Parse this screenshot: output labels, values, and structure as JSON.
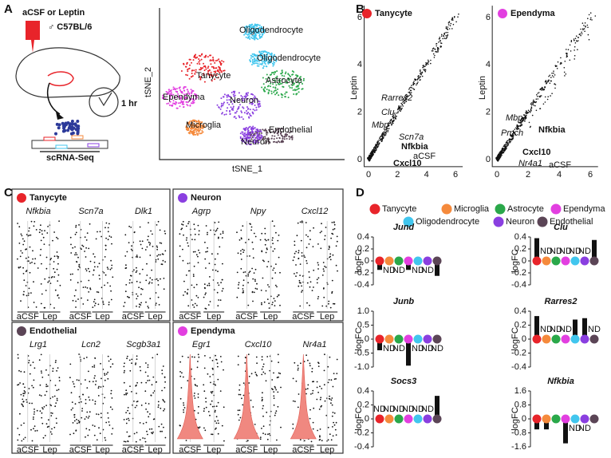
{
  "figure": {
    "a": {
      "label": "A",
      "treatment": "aCSF or Leptin",
      "mouse": "♂ C57BL/6",
      "time": "1 hr",
      "method": "scRNA-Seq",
      "tsne": {
        "x_label": "tSNE_1",
        "y_label": "tSNE_2",
        "clusters": [
          {
            "name": "Oligodendrocyte",
            "color": "#41c6ee"
          },
          {
            "name": "Oligodendrocyte",
            "color": "#41c6ee"
          },
          {
            "name": "Tanycyte",
            "color": "#e8242a"
          },
          {
            "name": "Astrocyte",
            "color": "#2aa84a"
          },
          {
            "name": "Ependyma",
            "color": "#e23fe0"
          },
          {
            "name": "Neuron",
            "color": "#8a3fe0"
          },
          {
            "name": "Microglia",
            "color": "#f58a3c"
          },
          {
            "name": "Endothelial",
            "color": "#5b4556"
          },
          {
            "name": "Neuron",
            "color": "#8a3fe0"
          }
        ]
      }
    },
    "b": {
      "label": "B",
      "plots": [
        {
          "title": "Tanycyte",
          "color": "#e8242a",
          "x_label": "aCSF",
          "y_label": "Leptin",
          "xlim": [
            -0.3,
            6.5
          ],
          "ylim": [
            -0.3,
            6.5
          ],
          "xticks": [
            0,
            2,
            4,
            6
          ],
          "yticks": [
            0,
            2,
            4,
            6
          ],
          "genes": [
            {
              "name": "Rarres2",
              "highlight": false
            },
            {
              "name": "Clu",
              "highlight": false
            },
            {
              "name": "Mbp",
              "highlight": false
            },
            {
              "name": "Scn7a",
              "highlight": false
            },
            {
              "name": "Nfkbia",
              "highlight": true
            },
            {
              "name": "Cxcl10",
              "highlight": true
            }
          ]
        },
        {
          "title": "Ependyma",
          "color": "#e23fe0",
          "x_label": "aCSF",
          "y_label": "Leptin",
          "xlim": [
            -0.3,
            6.5
          ],
          "ylim": [
            -0.3,
            6.5
          ],
          "xticks": [
            0,
            2,
            4,
            6
          ],
          "yticks": [
            0,
            2,
            4,
            6
          ],
          "genes": [
            {
              "name": "Mbp",
              "highlight": false
            },
            {
              "name": "Pmch",
              "highlight": false
            },
            {
              "name": "Nfkbia",
              "highlight": true
            },
            {
              "name": "Cxcl10",
              "highlight": true
            },
            {
              "name": "Nr4a1",
              "highlight": false
            }
          ]
        }
      ]
    },
    "c": {
      "label": "C",
      "groups": [
        "aCSF",
        "Lep"
      ],
      "boxes": [
        {
          "title": "Tanycyte",
          "color": "#e8242a",
          "genes": [
            "Nfkbia",
            "Scn7a",
            "Dlk1"
          ],
          "violin": false
        },
        {
          "title": "Neuron",
          "color": "#8a3fe0",
          "genes": [
            "Agrp",
            "Npy",
            "Cxcl12"
          ],
          "violin": false
        },
        {
          "title": "Endothelial",
          "color": "#5b4556",
          "genes": [
            "Lrg1",
            "Lcn2",
            "Scgb3a1"
          ],
          "violin": false
        },
        {
          "title": "Ependyma",
          "color": "#e23fe0",
          "genes": [
            "Egr1",
            "Cxcl10",
            "Nr4a1"
          ],
          "violin": true
        }
      ]
    },
    "d": {
      "label": "D",
      "y_label": "logFC",
      "missing_label": "ND",
      "legend": [
        {
          "name": "Tanycyte",
          "color": "#e8242a"
        },
        {
          "name": "Microglia",
          "color": "#f58a3c"
        },
        {
          "name": "Astrocyte",
          "color": "#2aa84a"
        },
        {
          "name": "Ependyma",
          "color": "#e23fe0"
        },
        {
          "name": "Oligodendrocyte",
          "color": "#41c6ee"
        },
        {
          "name": "Neuron",
          "color": "#8a3fe0"
        },
        {
          "name": "Endothelial",
          "color": "#5b4556"
        }
      ]
    }
  },
  "chart_data": [
    {
      "type": "bar",
      "title": "Jund",
      "values": [
        -0.15,
        null,
        null,
        -0.15,
        null,
        null,
        -0.25
      ],
      "ylim": [
        -0.4,
        0.4
      ],
      "yticks": [
        0.4,
        0.2,
        0,
        -0.2,
        -0.4
      ]
    },
    {
      "type": "bar",
      "title": "Clu",
      "values": [
        0.38,
        null,
        null,
        null,
        null,
        null,
        0.35
      ],
      "ylim": [
        -0.4,
        0.4
      ],
      "yticks": [
        0.4,
        0.2,
        0,
        -0.2,
        -0.4
      ]
    },
    {
      "type": "bar",
      "title": "Junb",
      "values": [
        -0.4,
        null,
        null,
        -0.95,
        null,
        null,
        null
      ],
      "ylim": [
        -1,
        1
      ],
      "yticks": [
        {
          "value": 1,
          "label": "1.0"
        },
        0.5,
        0,
        -0.5,
        {
          "value": -1,
          "label": "-1.0"
        }
      ]
    },
    {
      "type": "bar",
      "title": "Rarres2",
      "values": [
        0.33,
        null,
        null,
        null,
        0.28,
        0.3,
        null
      ],
      "ylim": [
        -0.4,
        0.4
      ],
      "yticks": [
        0.4,
        0.2,
        0,
        -0.2,
        -0.4
      ]
    },
    {
      "type": "bar",
      "title": "Socs3",
      "values": [
        null,
        null,
        null,
        null,
        null,
        null,
        0.33
      ],
      "ylim": [
        -0.4,
        0.4
      ],
      "yticks": [
        0.4,
        0.2,
        0,
        -0.2,
        -0.4
      ]
    },
    {
      "type": "bar",
      "title": "Nfkbia",
      "values": [
        -0.6,
        -0.6,
        -0.2,
        -1.4,
        null,
        null,
        -0.2
      ],
      "ylim": [
        -1.6,
        1.6
      ],
      "yticks": [
        1.6,
        0.8,
        0,
        -0.8,
        -1.6
      ]
    }
  ]
}
